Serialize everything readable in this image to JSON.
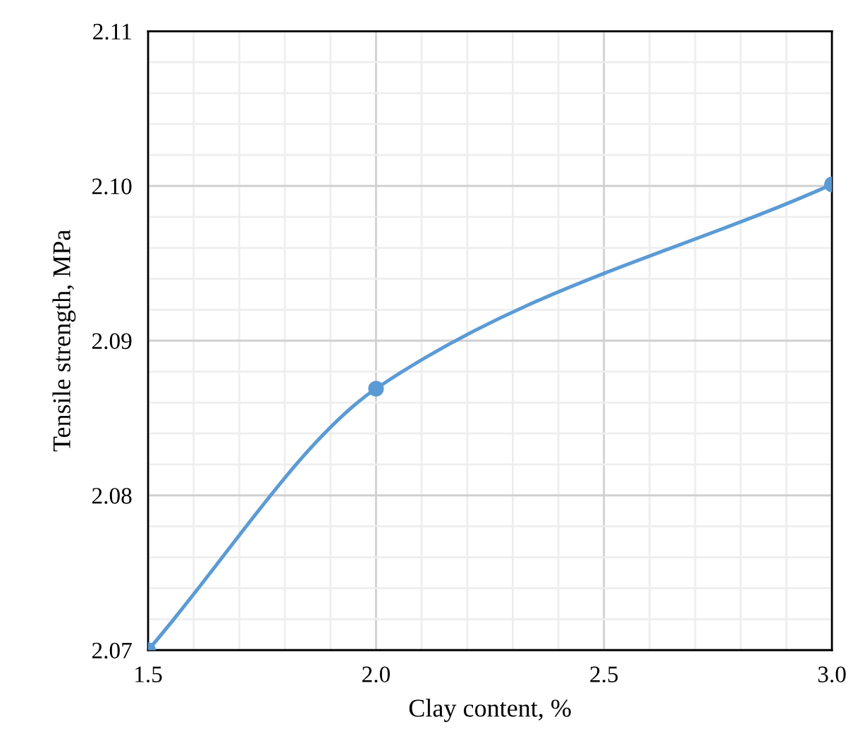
{
  "chart_data": {
    "type": "line",
    "xlabel": "Clay content, %",
    "ylabel": "Tensile strength, MPa",
    "x": [
      1.5,
      2.0,
      3.0
    ],
    "series": [
      {
        "color": "#5b9bd5",
        "values": [
          2.07,
          2.0869,
          2.1001
        ]
      }
    ],
    "xlim": [
      1.5,
      3.0
    ],
    "xticks": [
      1.5,
      {
        "value": 2.0,
        "label": "2.0"
      },
      2.5,
      {
        "value": 3.0,
        "label": "3.0"
      }
    ],
    "ylim": [
      2.07,
      2.11
    ],
    "yticks": [
      2.07,
      2.08,
      2.09,
      {
        "value": 2.1,
        "label": "2.10"
      },
      2.11
    ],
    "grid": true,
    "marker": "circle",
    "line_style": "solid"
  }
}
